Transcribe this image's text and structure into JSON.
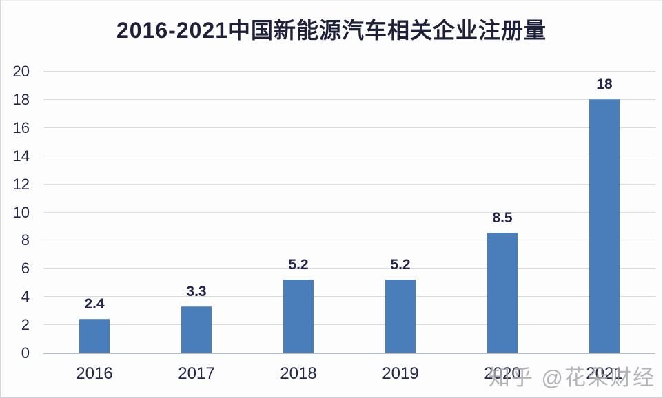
{
  "page": {
    "watermark": "知乎 @花朵财经"
  },
  "chart_data": {
    "type": "bar",
    "title": "2016-2021中国新能源汽车相关企业注册量",
    "categories": [
      "2016",
      "2017",
      "2018",
      "2019",
      "2020",
      "2021"
    ],
    "values": [
      2.4,
      3.3,
      5.2,
      5.2,
      8.5,
      18
    ],
    "data_labels": [
      "2.4",
      "3.3",
      "5.2",
      "5.2",
      "8.5",
      "18"
    ],
    "xlabel": "",
    "ylabel": "",
    "ylim": [
      0,
      20
    ],
    "yticks": [
      0,
      2,
      4,
      6,
      8,
      10,
      12,
      14,
      16,
      18,
      20
    ],
    "grid": true,
    "legend": "none",
    "bar_color": "#4a7ebb",
    "text_color": "#23264a",
    "gridline_color": "#d9dbe0",
    "axis_color": "#b4bac3",
    "background": "#fdfdfe"
  }
}
